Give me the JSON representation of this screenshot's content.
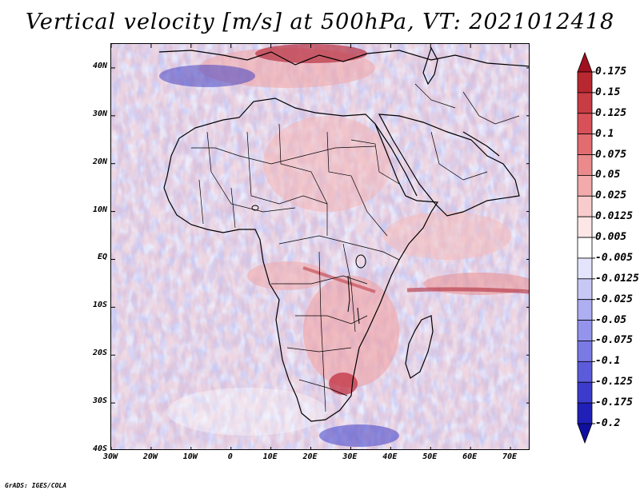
{
  "title": "Vertical velocity [m/s] at 500hPa, VT: 2021012418",
  "credit": "GrADS: IGES/COLA",
  "map": {
    "lon_range": [
      -30,
      75
    ],
    "lat_range": [
      -40,
      45
    ],
    "lat_ticks": [
      {
        "value": 40,
        "label": "40N"
      },
      {
        "value": 30,
        "label": "30N"
      },
      {
        "value": 20,
        "label": "20N"
      },
      {
        "value": 10,
        "label": "10N"
      },
      {
        "value": 0,
        "label": "EQ"
      },
      {
        "value": -10,
        "label": "10S"
      },
      {
        "value": -20,
        "label": "20S"
      },
      {
        "value": -30,
        "label": "30S"
      },
      {
        "value": -40,
        "label": "40S"
      }
    ],
    "lon_ticks": [
      {
        "value": -30,
        "label": "30W"
      },
      {
        "value": -20,
        "label": "20W"
      },
      {
        "value": -10,
        "label": "10W"
      },
      {
        "value": 0,
        "label": "0"
      },
      {
        "value": 10,
        "label": "10E"
      },
      {
        "value": 20,
        "label": "20E"
      },
      {
        "value": 30,
        "label": "30E"
      },
      {
        "value": 40,
        "label": "40E"
      },
      {
        "value": 50,
        "label": "50E"
      },
      {
        "value": 60,
        "label": "60E"
      },
      {
        "value": 70,
        "label": "70E"
      }
    ],
    "coastline_color": "#000000"
  },
  "colorbar": {
    "units": "m/s",
    "labels": [
      "0.175",
      "0.15",
      "0.125",
      "0.1",
      "0.075",
      "0.05",
      "0.025",
      "0.0125",
      "0.005",
      "-0.005",
      "-0.0125",
      "-0.025",
      "-0.05",
      "-0.075",
      "-0.1",
      "-0.125",
      "-0.175",
      "-0.2"
    ],
    "colors": [
      "#a01020",
      "#b82830",
      "#c83c44",
      "#d85058",
      "#e26c70",
      "#ea8a8c",
      "#f2aaaa",
      "#f8cccc",
      "#fce6e6",
      "#ffffff",
      "#e4e4fc",
      "#c8c8f6",
      "#aeaef2",
      "#9494ec",
      "#7a7ae4",
      "#5c5cda",
      "#3c3ccc",
      "#2020b8",
      "#1010a0"
    ]
  }
}
